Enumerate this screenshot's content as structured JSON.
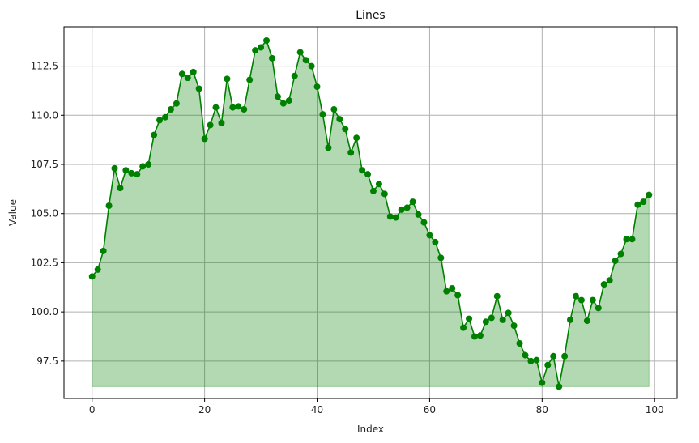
{
  "chart_data": {
    "type": "area",
    "title": "Lines",
    "xlabel": "Index",
    "ylabel": "Value",
    "xlim": [
      -5,
      104
    ],
    "ylim": [
      95.6,
      114.5
    ],
    "xticks": [
      0,
      20,
      40,
      60,
      80,
      100
    ],
    "yticks": [
      97.5,
      100.0,
      102.5,
      105.0,
      107.5,
      110.0,
      112.5
    ],
    "ytick_labels": [
      "97.5",
      "100.0",
      "102.5",
      "105.0",
      "107.5",
      "110.0",
      "112.5"
    ],
    "grid": true,
    "baseline": 96.2,
    "colors": {
      "line": "#008000",
      "fill": "#008000",
      "grid": "#b0b0b0"
    },
    "x": [
      0,
      1,
      2,
      3,
      4,
      5,
      6,
      7,
      8,
      9,
      10,
      11,
      12,
      13,
      14,
      15,
      16,
      17,
      18,
      19,
      20,
      21,
      22,
      23,
      24,
      25,
      26,
      27,
      28,
      29,
      30,
      31,
      32,
      33,
      34,
      35,
      36,
      37,
      38,
      39,
      40,
      41,
      42,
      43,
      44,
      45,
      46,
      47,
      48,
      49,
      50,
      51,
      52,
      53,
      54,
      55,
      56,
      57,
      58,
      59,
      60,
      61,
      62,
      63,
      64,
      65,
      66,
      67,
      68,
      69,
      70,
      71,
      72,
      73,
      74,
      75,
      76,
      77,
      78,
      79,
      80,
      81,
      82,
      83,
      84,
      85,
      86,
      87,
      88,
      89,
      90,
      91,
      92,
      93,
      94,
      95,
      96,
      97,
      98,
      99
    ],
    "values": [
      101.8,
      102.15,
      103.1,
      105.4,
      107.3,
      106.3,
      107.2,
      107.05,
      107.0,
      107.4,
      107.5,
      109.0,
      109.75,
      109.9,
      110.3,
      110.6,
      112.1,
      111.9,
      112.2,
      111.35,
      108.8,
      109.5,
      110.4,
      109.6,
      111.85,
      110.4,
      110.45,
      110.3,
      111.8,
      113.3,
      113.45,
      113.8,
      112.9,
      110.95,
      110.6,
      110.75,
      112.0,
      113.2,
      112.8,
      112.5,
      111.45,
      110.05,
      108.35,
      110.3,
      109.8,
      109.3,
      108.1,
      108.85,
      107.2,
      107.0,
      106.15,
      106.5,
      106.0,
      104.85,
      104.8,
      105.2,
      105.3,
      105.6,
      104.95,
      104.55,
      103.9,
      103.55,
      102.75,
      101.05,
      101.2,
      100.85,
      99.2,
      99.65,
      98.75,
      98.8,
      99.5,
      99.7,
      100.8,
      99.6,
      99.95,
      99.3,
      98.4,
      97.8,
      97.5,
      97.55,
      96.4,
      97.3,
      97.75,
      96.2,
      97.75,
      99.6,
      100.8,
      100.6,
      99.55,
      100.6,
      100.2,
      101.4,
      101.6,
      102.6,
      102.95,
      103.7,
      103.7,
      105.45,
      105.6,
      105.95
    ]
  }
}
